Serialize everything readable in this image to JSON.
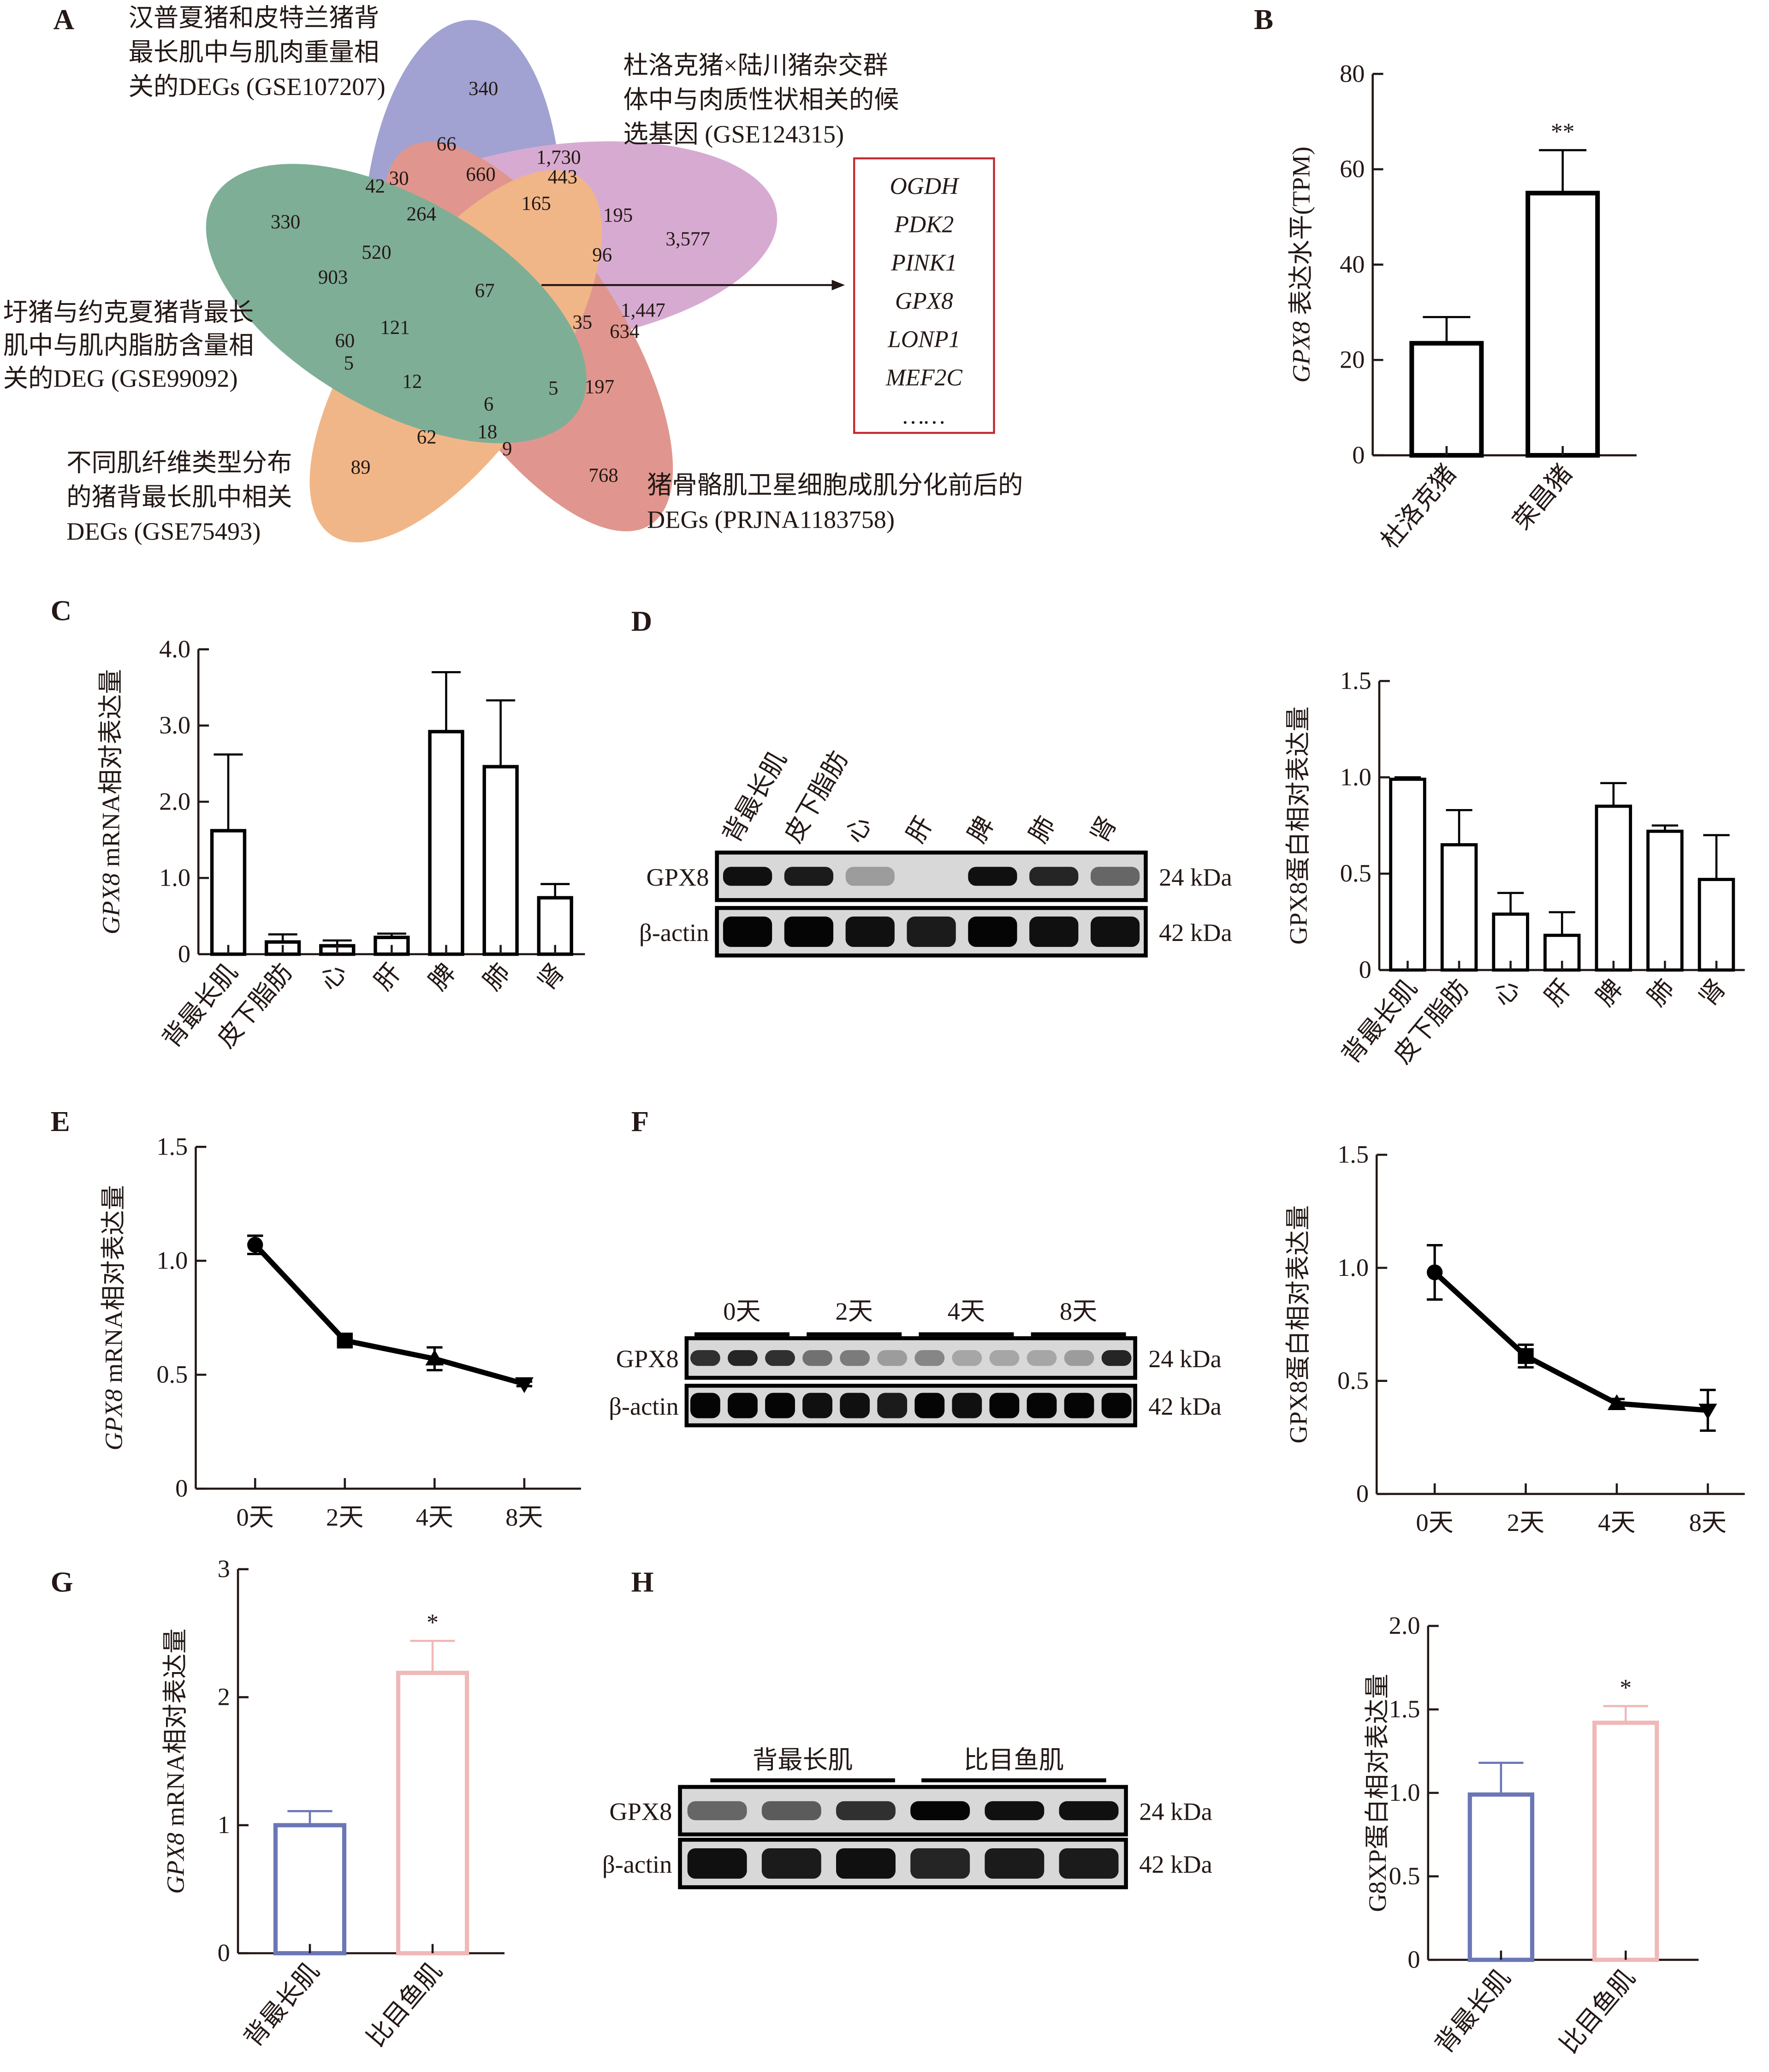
{
  "figure": {
    "panels": [
      "A",
      "B",
      "C",
      "D",
      "E",
      "F",
      "G",
      "H"
    ]
  },
  "venn": {
    "sets": [
      {
        "name": "汉普夏猪和皮特兰猪背最长肌中与肌肉重量相关的DEGs (GSE107207)",
        "lines": [
          "汉普夏猪和皮特兰猪背",
          "最长肌中与肌肉重量相",
          "关的DEGs (GSE107207)"
        ],
        "color": "#7d7fc0"
      },
      {
        "name": "杜洛克猪×陆川猪杂交群体中与肉质性状相关的候选基因 (GSE124315)",
        "lines": [
          "杜洛克猪×陆川猪杂交群",
          "体中与肉质性状相关的候",
          "选基因 (GSE124315)"
        ],
        "color": "#c98bc0"
      },
      {
        "name": "猪骨骼肌卫星细胞成肌分化前后的DEGs (PRJNA1183758)",
        "lines": [
          "猪骨骼肌卫星细胞成肌分化前后的",
          "DEGs (PRJNA1183758)"
        ],
        "color": "#d56f64"
      },
      {
        "name": "不同肌纤维类型分布的猪背最长肌中相关DEGs (GSE75493)",
        "lines": [
          "不同肌纤维类型分布",
          "的猪背最长肌中相关",
          "DEGs (GSE75493)"
        ],
        "color": "#ec9a5a"
      },
      {
        "name": "圩猪与约克夏猪背最长肌中与肌内脂肪含量相关的DEG (GSE99092)",
        "lines": [
          "圩猪与约克夏猪背最长",
          "肌中与肌内脂肪含量相",
          "关的DEG (GSE99092)"
        ],
        "color": "#4e8f6e"
      }
    ],
    "counts": [
      "340",
      "66",
      "1,730",
      "660",
      "443",
      "42",
      "30",
      "330",
      "264",
      "165",
      "195",
      "3,577",
      "520",
      "96",
      "903",
      "67",
      "1,447",
      "121",
      "35",
      "634",
      "60",
      "5",
      "12",
      "5",
      "197",
      "6",
      "18",
      "9",
      "62",
      "89",
      "768"
    ],
    "center_count": "67",
    "genes": [
      {
        "name": "OGDH",
        "highlight": false
      },
      {
        "name": "PDK2",
        "highlight": false
      },
      {
        "name": "PINK1",
        "highlight": false
      },
      {
        "name": "GPX8",
        "highlight": true
      },
      {
        "name": "LONP1",
        "highlight": false
      },
      {
        "name": "MEF2C",
        "highlight": false
      },
      {
        "name": "……",
        "highlight": false
      }
    ],
    "highlight_color": "#e60012",
    "box_color": "#c0272d"
  },
  "chart_data": [
    {
      "panel": "B",
      "type": "bar",
      "categories": [
        "杜洛克猪",
        "荣昌猪"
      ],
      "values": [
        23.5,
        55.0
      ],
      "errors_upper": [
        29.0,
        64.0
      ],
      "significance": [
        "",
        "**"
      ],
      "ylabel_italic": "GPX8",
      "ylabel_rest": " 表达水平(TPM)",
      "ylim": [
        0,
        80
      ],
      "yticks": [
        "0",
        "20",
        "40",
        "60",
        "80"
      ],
      "colors": [
        "#000000",
        "#000000"
      ]
    },
    {
      "panel": "C",
      "type": "bar",
      "categories": [
        "背最长肌",
        "皮下脂肪",
        "心",
        "肝",
        "脾",
        "肺",
        "肾"
      ],
      "values": [
        1.62,
        0.16,
        0.11,
        0.22,
        2.92,
        2.46,
        0.74
      ],
      "errors_upper": [
        2.62,
        0.26,
        0.18,
        0.27,
        3.7,
        3.33,
        0.92
      ],
      "ylabel_italic": "GPX8",
      "ylabel_rest": " mRNA相对表达量",
      "ylim": [
        0,
        4
      ],
      "yticks": [
        "0",
        "1.0",
        "2.0",
        "3.0",
        "4.0"
      ]
    },
    {
      "panel": "D",
      "type": "bar",
      "categories": [
        "背最长肌",
        "皮下脂肪",
        "心",
        "肝",
        "脾",
        "肺",
        "肾"
      ],
      "values": [
        0.99,
        0.65,
        0.29,
        0.18,
        0.85,
        0.72,
        0.47
      ],
      "errors_upper": [
        1.0,
        0.83,
        0.4,
        0.3,
        0.97,
        0.75,
        0.7
      ],
      "ylabel_italic": "",
      "ylabel_rest": "GPX8蛋白相对表达量",
      "ylim": [
        0,
        1.5
      ],
      "yticks": [
        "0",
        "0.5",
        "1.0",
        "1.5"
      ]
    },
    {
      "panel": "E",
      "type": "line",
      "categories": [
        "0天",
        "2天",
        "4天",
        "8天"
      ],
      "values": [
        1.07,
        0.65,
        0.57,
        0.46
      ],
      "errors": [
        0.04,
        0.01,
        0.05,
        0.01
      ],
      "markers": [
        "circle",
        "square",
        "triangle-up",
        "triangle-down"
      ],
      "ylabel_italic": "GPX8",
      "ylabel_rest": " mRNA相对表达量",
      "ylim": [
        0,
        1.5
      ],
      "yticks": [
        "0",
        "0.5",
        "1.0",
        "1.5"
      ]
    },
    {
      "panel": "F",
      "type": "line",
      "categories": [
        "0天",
        "2天",
        "4天",
        "8天"
      ],
      "values": [
        0.98,
        0.61,
        0.4,
        0.37
      ],
      "errors": [
        0.12,
        0.05,
        0.02,
        0.09
      ],
      "markers": [
        "circle",
        "square",
        "triangle-up",
        "triangle-down"
      ],
      "ylabel_italic": "",
      "ylabel_rest": "GPX8蛋白相对表达量",
      "ylim": [
        0,
        1.5
      ],
      "yticks": [
        "0",
        "0.5",
        "1.0",
        "1.5"
      ]
    },
    {
      "panel": "G",
      "type": "bar",
      "categories": [
        "背最长肌",
        "比目鱼肌"
      ],
      "values": [
        1.0,
        2.19
      ],
      "errors_upper": [
        1.11,
        2.44
      ],
      "significance": [
        "",
        "*"
      ],
      "ylabel_italic": "GPX8",
      "ylabel_rest": " mRNA相对表达量",
      "ylim": [
        0,
        3
      ],
      "yticks": [
        "0",
        "1",
        "2",
        "3"
      ],
      "colors": [
        "#6b77b5",
        "#f0b8b8"
      ]
    },
    {
      "panel": "H",
      "type": "bar",
      "categories": [
        "背最长肌",
        "比目鱼肌"
      ],
      "values": [
        0.99,
        1.42
      ],
      "errors_upper": [
        1.18,
        1.52
      ],
      "significance": [
        "",
        "*"
      ],
      "ylabel_italic": "",
      "ylabel_rest": "G8XP蛋白相对表达量",
      "ylim": [
        0,
        2.0
      ],
      "yticks": [
        "0",
        "0.5",
        "1.0",
        "1.5",
        "2.0"
      ],
      "colors": [
        "#6b77b5",
        "#f0b8b8"
      ]
    }
  ],
  "blots": {
    "D": {
      "lanes": [
        "背最长肌",
        "皮下脂肪",
        "心",
        "肝",
        "脾",
        "肺",
        "肾"
      ],
      "rows": [
        {
          "label": "GPX8",
          "kda": "24 kDa"
        },
        {
          "label": "β-actin",
          "kda": "42 kDa"
        }
      ],
      "gpx8_intensity": [
        0.95,
        0.9,
        0.3,
        0.02,
        0.95,
        0.85,
        0.55
      ],
      "actin_intensity": [
        1,
        1,
        0.95,
        0.9,
        1,
        0.95,
        0.95
      ]
    },
    "F": {
      "groups": [
        "0天",
        "2天",
        "4天",
        "8天"
      ],
      "rows": [
        {
          "label": "GPX8",
          "kda": "24 kDa"
        },
        {
          "label": "β-actin",
          "kda": "42 kDa"
        }
      ],
      "gpx8_intensity": [
        0.8,
        0.85,
        0.8,
        0.5,
        0.45,
        0.3,
        0.4,
        0.25,
        0.25,
        0.25,
        0.3,
        0.85
      ],
      "actin_intensity": [
        1,
        1,
        1,
        0.95,
        0.95,
        0.9,
        1,
        0.95,
        1,
        1,
        1,
        1
      ]
    },
    "H": {
      "groups": [
        "背最长肌",
        "比目鱼肌"
      ],
      "rows": [
        {
          "label": "GPX8",
          "kda": "24 kDa"
        },
        {
          "label": "β-actin",
          "kda": "42 kDa"
        }
      ],
      "gpx8_intensity": [
        0.55,
        0.6,
        0.8,
        1,
        0.95,
        0.95
      ],
      "actin_intensity": [
        0.95,
        0.9,
        0.95,
        0.85,
        0.9,
        0.9
      ]
    }
  }
}
